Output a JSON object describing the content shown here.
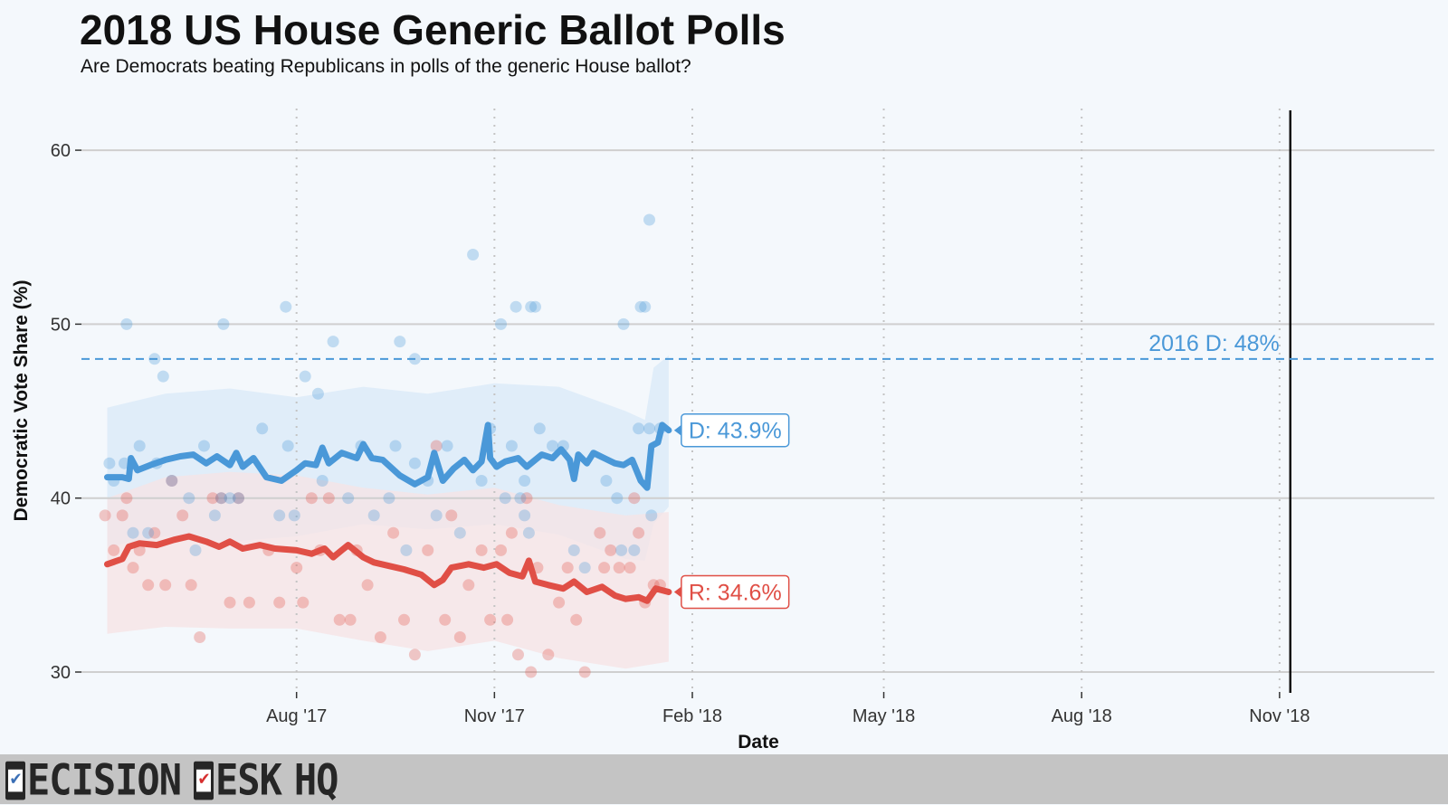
{
  "title": "2018 US House Generic Ballot Polls",
  "subtitle": "Are Democrats beating Republicans in polls of the generic House ballot?",
  "logo": {
    "text_1": "ECISION",
    "text_2": "ESK",
    "text_3": "HQ",
    "check_1_color": "#3b6fb6",
    "check_2_color": "#d62f2f"
  },
  "chart_data": {
    "type": "line",
    "xlabel": "Date",
    "ylabel": "Democratic Vote Share (%)",
    "xlim": [
      "2017-04-23",
      "2019-01-12"
    ],
    "ylim": [
      28.7,
      62.5
    ],
    "y_ticks": [
      30,
      40,
      50,
      60
    ],
    "x_ticks": [
      {
        "date": "2017-08-01",
        "label": "Aug '17"
      },
      {
        "date": "2017-11-01",
        "label": "Nov '17"
      },
      {
        "date": "2018-02-01",
        "label": "Feb '18"
      },
      {
        "date": "2018-05-01",
        "label": "May '18"
      },
      {
        "date": "2018-08-01",
        "label": "Aug '18"
      },
      {
        "date": "2018-11-01",
        "label": "Nov '18"
      }
    ],
    "grid": true,
    "election_day": "2018-11-06",
    "reference_line": {
      "value": 48,
      "label": "2016 D: 48%"
    },
    "colors": {
      "dem": "#4a98d8",
      "rep": "#e04f46",
      "dem_band": "#d9eaf8",
      "rep_band": "#f7e3e4",
      "reference": "#4a98d8"
    },
    "series": [
      {
        "name": "D",
        "end_label": "D: 43.9%",
        "color": "#4a98d8",
        "trend": [
          [
            "2017-05-05",
            41.2
          ],
          [
            "2017-05-12",
            41.2
          ],
          [
            "2017-05-15",
            41.1
          ],
          [
            "2017-05-16",
            42.3
          ],
          [
            "2017-05-19",
            41.6
          ],
          [
            "2017-05-25",
            41.9
          ],
          [
            "2017-06-01",
            42.2
          ],
          [
            "2017-06-08",
            42.4
          ],
          [
            "2017-06-14",
            42.5
          ],
          [
            "2017-06-20",
            42.0
          ],
          [
            "2017-06-25",
            42.4
          ],
          [
            "2017-07-01",
            41.9
          ],
          [
            "2017-07-04",
            42.6
          ],
          [
            "2017-07-07",
            41.8
          ],
          [
            "2017-07-12",
            42.3
          ],
          [
            "2017-07-18",
            41.2
          ],
          [
            "2017-07-25",
            41.0
          ],
          [
            "2017-08-01",
            41.6
          ],
          [
            "2017-08-05",
            42.0
          ],
          [
            "2017-08-10",
            41.9
          ],
          [
            "2017-08-13",
            42.9
          ],
          [
            "2017-08-16",
            42.0
          ],
          [
            "2017-08-22",
            42.6
          ],
          [
            "2017-08-29",
            42.3
          ],
          [
            "2017-09-01",
            43.1
          ],
          [
            "2017-09-05",
            42.3
          ],
          [
            "2017-09-10",
            42.2
          ],
          [
            "2017-09-18",
            41.3
          ],
          [
            "2017-09-25",
            40.8
          ],
          [
            "2017-10-01",
            41.2
          ],
          [
            "2017-10-04",
            42.6
          ],
          [
            "2017-10-08",
            41.0
          ],
          [
            "2017-10-13",
            41.7
          ],
          [
            "2017-10-18",
            42.2
          ],
          [
            "2017-10-22",
            41.6
          ],
          [
            "2017-10-26",
            42.1
          ],
          [
            "2017-10-29",
            44.2
          ],
          [
            "2017-10-30",
            42.3
          ],
          [
            "2017-11-02",
            41.8
          ],
          [
            "2017-11-06",
            42.1
          ],
          [
            "2017-11-12",
            42.3
          ],
          [
            "2017-11-16",
            41.8
          ],
          [
            "2017-11-23",
            42.5
          ],
          [
            "2017-11-28",
            42.3
          ],
          [
            "2017-12-02",
            42.8
          ],
          [
            "2017-12-06",
            42.2
          ],
          [
            "2017-12-08",
            41.1
          ],
          [
            "2017-12-10",
            42.5
          ],
          [
            "2017-12-14",
            42.0
          ],
          [
            "2017-12-17",
            42.6
          ],
          [
            "2017-12-22",
            42.3
          ],
          [
            "2017-12-27",
            42.0
          ],
          [
            "2017-12-31",
            41.9
          ],
          [
            "2018-01-04",
            42.2
          ],
          [
            "2018-01-08",
            41.0
          ],
          [
            "2018-01-11",
            40.6
          ],
          [
            "2018-01-13",
            43.0
          ],
          [
            "2018-01-16",
            43.2
          ],
          [
            "2018-01-18",
            44.2
          ],
          [
            "2018-01-21",
            43.9
          ]
        ],
        "polls": [
          [
            "2017-05-06",
            42
          ],
          [
            "2017-05-08",
            41
          ],
          [
            "2017-05-13",
            42
          ],
          [
            "2017-05-14",
            50
          ],
          [
            "2017-05-17",
            38
          ],
          [
            "2017-05-20",
            43
          ],
          [
            "2017-05-24",
            38
          ],
          [
            "2017-05-27",
            48
          ],
          [
            "2017-05-28",
            42
          ],
          [
            "2017-05-31",
            47
          ],
          [
            "2017-06-04",
            41
          ],
          [
            "2017-06-12",
            40
          ],
          [
            "2017-06-15",
            37
          ],
          [
            "2017-06-19",
            43
          ],
          [
            "2017-06-24",
            39
          ],
          [
            "2017-06-27",
            40
          ],
          [
            "2017-06-28",
            50
          ],
          [
            "2017-07-01",
            40
          ],
          [
            "2017-07-05",
            40
          ],
          [
            "2017-07-16",
            44
          ],
          [
            "2017-07-24",
            39
          ],
          [
            "2017-07-27",
            51
          ],
          [
            "2017-07-28",
            43
          ],
          [
            "2017-07-31",
            39
          ],
          [
            "2017-08-05",
            47
          ],
          [
            "2017-08-11",
            46
          ],
          [
            "2017-08-13",
            41
          ],
          [
            "2017-08-18",
            49
          ],
          [
            "2017-08-25",
            40
          ],
          [
            "2017-08-31",
            43
          ],
          [
            "2017-09-06",
            39
          ],
          [
            "2017-09-13",
            40
          ],
          [
            "2017-09-16",
            43
          ],
          [
            "2017-09-18",
            49
          ],
          [
            "2017-09-21",
            37
          ],
          [
            "2017-09-25",
            48
          ],
          [
            "2017-09-25",
            42
          ],
          [
            "2017-10-01",
            41
          ],
          [
            "2017-10-05",
            39
          ],
          [
            "2017-10-10",
            43
          ],
          [
            "2017-10-16",
            38
          ],
          [
            "2017-10-22",
            54
          ],
          [
            "2017-10-26",
            41
          ],
          [
            "2017-10-30",
            44
          ],
          [
            "2017-11-04",
            50
          ],
          [
            "2017-11-06",
            40
          ],
          [
            "2017-11-09",
            43
          ],
          [
            "2017-11-11",
            51
          ],
          [
            "2017-11-13",
            40
          ],
          [
            "2017-11-15",
            41
          ],
          [
            "2017-11-18",
            51
          ],
          [
            "2017-11-20",
            51
          ],
          [
            "2017-11-15",
            39
          ],
          [
            "2017-11-17",
            38
          ],
          [
            "2017-11-22",
            44
          ],
          [
            "2017-11-28",
            43
          ],
          [
            "2017-12-03",
            43
          ],
          [
            "2017-12-08",
            37
          ],
          [
            "2017-12-13",
            36
          ],
          [
            "2017-12-23",
            41
          ],
          [
            "2017-12-28",
            40
          ],
          [
            "2017-12-30",
            37
          ],
          [
            "2017-12-31",
            50
          ],
          [
            "2018-01-05",
            37
          ],
          [
            "2018-01-07",
            44
          ],
          [
            "2018-01-08",
            51
          ],
          [
            "2018-01-10",
            51
          ],
          [
            "2018-01-12",
            56
          ],
          [
            "2018-01-13",
            39
          ],
          [
            "2018-01-12",
            44
          ],
          [
            "2018-01-17",
            44
          ]
        ],
        "band": [
          [
            "2017-05-05",
            37.2,
            45.2
          ],
          [
            "2017-06-01",
            37.8,
            46.0
          ],
          [
            "2017-07-01",
            37.5,
            46.3
          ],
          [
            "2017-08-01",
            37.8,
            45.8
          ],
          [
            "2017-09-01",
            38.5,
            46.4
          ],
          [
            "2017-10-01",
            38.2,
            46.0
          ],
          [
            "2017-11-01",
            38.5,
            46.6
          ],
          [
            "2017-12-01",
            37.9,
            46.4
          ],
          [
            "2018-01-01",
            36.5,
            45.0
          ],
          [
            "2018-01-10",
            36.4,
            44.5
          ],
          [
            "2018-01-14",
            38.5,
            47.5
          ],
          [
            "2018-01-21",
            39.5,
            48.2
          ]
        ]
      },
      {
        "name": "R",
        "end_label": "R: 34.6%",
        "color": "#e04f46",
        "trend": [
          [
            "2017-05-05",
            36.2
          ],
          [
            "2017-05-12",
            36.5
          ],
          [
            "2017-05-15",
            37.2
          ],
          [
            "2017-05-20",
            37.4
          ],
          [
            "2017-05-28",
            37.3
          ],
          [
            "2017-06-05",
            37.6
          ],
          [
            "2017-06-12",
            37.8
          ],
          [
            "2017-06-20",
            37.5
          ],
          [
            "2017-06-26",
            37.2
          ],
          [
            "2017-07-01",
            37.5
          ],
          [
            "2017-07-07",
            37.1
          ],
          [
            "2017-07-15",
            37.3
          ],
          [
            "2017-07-22",
            37.1
          ],
          [
            "2017-08-01",
            37.0
          ],
          [
            "2017-08-08",
            36.8
          ],
          [
            "2017-08-14",
            37.1
          ],
          [
            "2017-08-18",
            36.6
          ],
          [
            "2017-08-25",
            37.3
          ],
          [
            "2017-09-01",
            36.6
          ],
          [
            "2017-09-06",
            36.3
          ],
          [
            "2017-09-13",
            36.1
          ],
          [
            "2017-09-20",
            35.9
          ],
          [
            "2017-09-28",
            35.6
          ],
          [
            "2017-10-04",
            35.0
          ],
          [
            "2017-10-08",
            35.3
          ],
          [
            "2017-10-12",
            36.0
          ],
          [
            "2017-10-20",
            36.2
          ],
          [
            "2017-10-27",
            36.0
          ],
          [
            "2017-11-02",
            36.2
          ],
          [
            "2017-11-08",
            35.7
          ],
          [
            "2017-11-14",
            35.5
          ],
          [
            "2017-11-17",
            36.4
          ],
          [
            "2017-11-20",
            35.2
          ],
          [
            "2017-11-26",
            35.0
          ],
          [
            "2017-12-03",
            34.8
          ],
          [
            "2017-12-08",
            35.2
          ],
          [
            "2017-12-14",
            34.6
          ],
          [
            "2017-12-21",
            34.9
          ],
          [
            "2017-12-27",
            34.4
          ],
          [
            "2018-01-01",
            34.2
          ],
          [
            "2018-01-07",
            34.3
          ],
          [
            "2018-01-11",
            34.1
          ],
          [
            "2018-01-15",
            34.8
          ],
          [
            "2018-01-21",
            34.6
          ]
        ],
        "polls": [
          [
            "2017-05-04",
            39
          ],
          [
            "2017-05-08",
            37
          ],
          [
            "2017-05-12",
            39
          ],
          [
            "2017-05-14",
            40
          ],
          [
            "2017-05-17",
            36
          ],
          [
            "2017-05-20",
            37
          ],
          [
            "2017-05-24",
            35
          ],
          [
            "2017-05-27",
            38
          ],
          [
            "2017-06-01",
            35
          ],
          [
            "2017-06-04",
            41
          ],
          [
            "2017-06-09",
            39
          ],
          [
            "2017-06-13",
            35
          ],
          [
            "2017-06-17",
            32
          ],
          [
            "2017-06-23",
            40
          ],
          [
            "2017-06-27",
            40
          ],
          [
            "2017-07-01",
            34
          ],
          [
            "2017-07-05",
            40
          ],
          [
            "2017-07-10",
            34
          ],
          [
            "2017-07-19",
            37
          ],
          [
            "2017-07-24",
            34
          ],
          [
            "2017-08-01",
            36
          ],
          [
            "2017-08-04",
            34
          ],
          [
            "2017-08-08",
            40
          ],
          [
            "2017-08-12",
            37
          ],
          [
            "2017-08-16",
            40
          ],
          [
            "2017-08-21",
            33
          ],
          [
            "2017-08-26",
            33
          ],
          [
            "2017-08-29",
            37
          ],
          [
            "2017-09-03",
            35
          ],
          [
            "2017-09-09",
            32
          ],
          [
            "2017-09-15",
            38
          ],
          [
            "2017-09-20",
            33
          ],
          [
            "2017-09-25",
            31
          ],
          [
            "2017-10-01",
            37
          ],
          [
            "2017-10-05",
            43
          ],
          [
            "2017-10-09",
            33
          ],
          [
            "2017-10-12",
            39
          ],
          [
            "2017-10-16",
            32
          ],
          [
            "2017-10-20",
            35
          ],
          [
            "2017-10-26",
            37
          ],
          [
            "2017-10-30",
            33
          ],
          [
            "2017-11-04",
            37
          ],
          [
            "2017-11-07",
            33
          ],
          [
            "2017-11-09",
            38
          ],
          [
            "2017-11-12",
            31
          ],
          [
            "2017-11-16",
            40
          ],
          [
            "2017-11-18",
            30
          ],
          [
            "2017-11-21",
            36
          ],
          [
            "2017-11-26",
            31
          ],
          [
            "2017-12-01",
            34
          ],
          [
            "2017-12-05",
            36
          ],
          [
            "2017-12-09",
            33
          ],
          [
            "2017-12-13",
            30
          ],
          [
            "2017-12-20",
            38
          ],
          [
            "2017-12-22",
            36
          ],
          [
            "2017-12-25",
            37
          ],
          [
            "2017-12-29",
            36
          ],
          [
            "2018-01-03",
            36
          ],
          [
            "2018-01-05",
            40
          ],
          [
            "2018-01-07",
            38
          ],
          [
            "2018-01-10",
            34
          ],
          [
            "2018-01-14",
            35
          ],
          [
            "2018-01-17",
            35
          ]
        ],
        "band": [
          [
            "2017-05-05",
            32.2,
            40.0
          ],
          [
            "2017-06-01",
            32.6,
            41.2
          ],
          [
            "2017-07-01",
            32.5,
            41.5
          ],
          [
            "2017-08-01",
            32.5,
            41.3
          ],
          [
            "2017-09-01",
            31.8,
            40.6
          ],
          [
            "2017-10-01",
            31.2,
            40.2
          ],
          [
            "2017-11-01",
            31.8,
            40.6
          ],
          [
            "2017-12-01",
            30.8,
            39.6
          ],
          [
            "2018-01-01",
            30.2,
            39.0
          ],
          [
            "2018-01-21",
            30.6,
            39.2
          ]
        ]
      }
    ]
  }
}
